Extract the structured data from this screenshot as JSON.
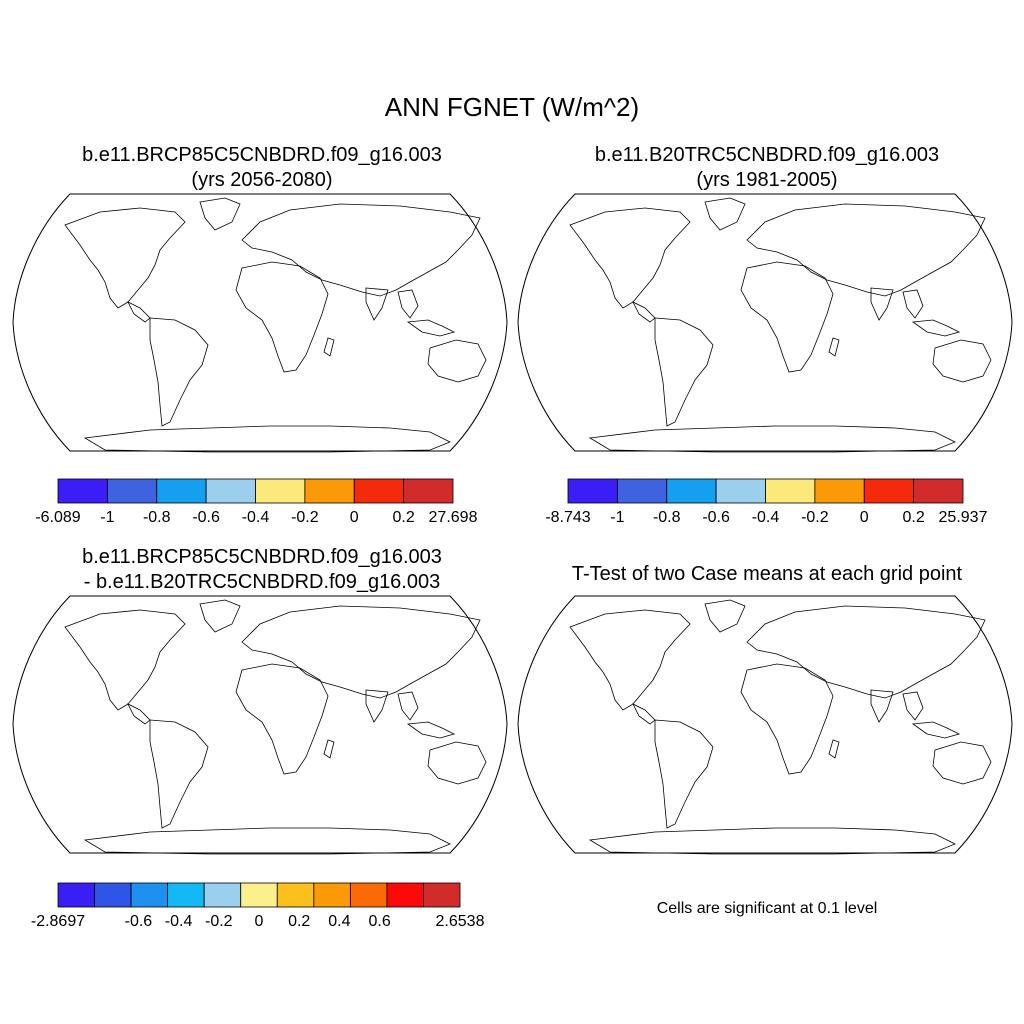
{
  "main_title": "ANN FGNET (W/m^2)",
  "panels": [
    {
      "id": "p1",
      "title_lines": [
        "b.e11.BRCP85C5CNBDRD.f09_g16.003",
        "(yrs 2056-2080)"
      ],
      "colorbar": {
        "colors": [
          "#3b1ef5",
          "#3f63e0",
          "#14a0f0",
          "#9ccfee",
          "#fbe97a",
          "#fb9a06",
          "#f52a0a",
          "#d22b2b"
        ],
        "labels": [
          "-6.089",
          "-1",
          "-0.8",
          "-0.6",
          "-0.4",
          "-0.2",
          "0",
          "0.2",
          "27.698"
        ]
      }
    },
    {
      "id": "p2",
      "title_lines": [
        "b.e11.B20TRC5CNBDRD.f09_g16.003",
        "(yrs 1981-2005)"
      ],
      "colorbar": {
        "colors": [
          "#3b1ef5",
          "#3f63e0",
          "#14a0f0",
          "#9ccfee",
          "#fbe97a",
          "#fb9a06",
          "#f52a0a",
          "#d22b2b"
        ],
        "labels": [
          "-8.743",
          "-1",
          "-0.8",
          "-0.6",
          "-0.4",
          "-0.2",
          "0",
          "0.2",
          "25.937"
        ]
      }
    },
    {
      "id": "p3",
      "title_lines": [
        "b.e11.BRCP85C5CNBDRD.f09_g16.003",
        "- b.e11.B20TRC5CNBDRD.f09_g16.003"
      ],
      "colorbar": {
        "colors": [
          "#3b1ef5",
          "#2f55e8",
          "#1e90f0",
          "#14b8f5",
          "#9ccfee",
          "#fbf08c",
          "#fbbf1e",
          "#fb9a06",
          "#fb6a06",
          "#fb0a0a",
          "#d22b2b"
        ],
        "labels": [
          "-2.8697",
          "",
          "-0.6",
          "-0.4",
          "-0.2",
          "0",
          "0.2",
          "0.4",
          "0.6",
          "",
          "2.6538"
        ]
      }
    },
    {
      "id": "p4",
      "title_lines": [
        "T-Test of two Case means at each grid point"
      ],
      "note": "Cells are significant at 0.1 level"
    }
  ],
  "map_colors": {
    "outline": "#000000",
    "p1_main": "#f52a0a",
    "p1_dark": "#d22b2b",
    "p1_north": "#9ccfee",
    "p2_main": "#f52a0a",
    "p2_orange": "#fb9a06",
    "p2_north": "#9ccfee",
    "p3_main": "#fcf08a",
    "p3_orange": "#fb9a06",
    "p4_sig": "#ff0000"
  }
}
